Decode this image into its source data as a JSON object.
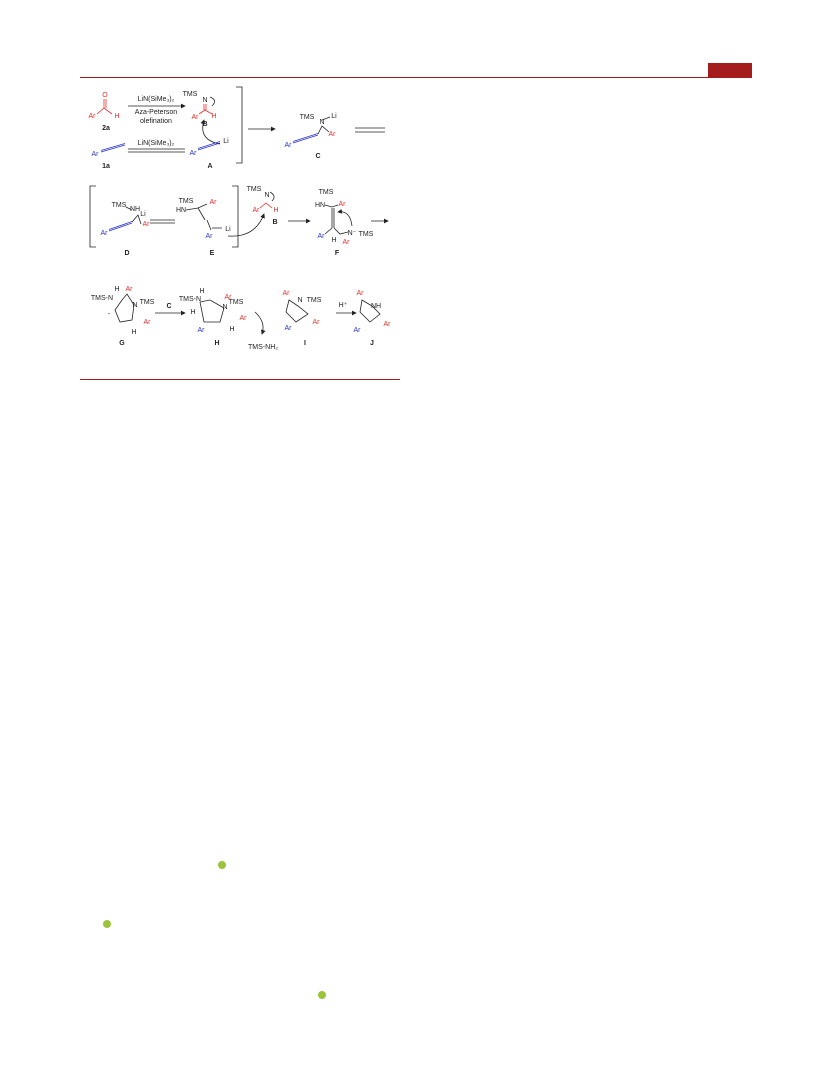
{
  "scheme": {
    "reagents": [
      "LiN(SiMe₃)₂",
      "Aza-Peterson",
      "olefination",
      "LiN(SiMe₃)₂",
      "TMS-NH₂",
      "H⁺",
      "C"
    ],
    "labels": [
      "2a",
      "1a",
      "A",
      "B",
      "C",
      "D",
      "E",
      "B",
      "F",
      "G",
      "H",
      "I",
      "J"
    ],
    "atoms": {
      "s2a": [
        "Ar",
        "O",
        "H"
      ],
      "s1a": [
        "Ar"
      ],
      "sB1": [
        "TMS",
        "N",
        "Ar",
        "H"
      ],
      "sA": [
        "Li",
        "Ar"
      ],
      "sC": [
        "TMS",
        "N",
        "Li",
        "Ar",
        "Ar"
      ],
      "sD": [
        "TMS",
        "NH",
        "Li",
        "Ar",
        "Ar"
      ],
      "sE": [
        "TMS",
        "HN",
        "Ar",
        "Li",
        "Ar"
      ],
      "sB2": [
        "TMS",
        "N",
        "Ar",
        "H"
      ],
      "sF": [
        "TMS",
        "HN",
        "Ar",
        "Ar",
        "H",
        "Ar",
        "N⁻",
        "TMS"
      ],
      "sG": [
        "H",
        "TMS-N",
        "Ar",
        "N",
        "TMS",
        "Ar",
        "H",
        "-"
      ],
      "sH": [
        "H",
        "TMS-N",
        "Ar",
        "N",
        "TMS",
        "H",
        "Ar",
        "H",
        "Ar"
      ],
      "sI": [
        "Ar",
        "N",
        "TMS",
        "Ar",
        "Ar"
      ],
      "sJ": [
        "Ar",
        "NH",
        "Ar",
        "Ar"
      ]
    }
  }
}
